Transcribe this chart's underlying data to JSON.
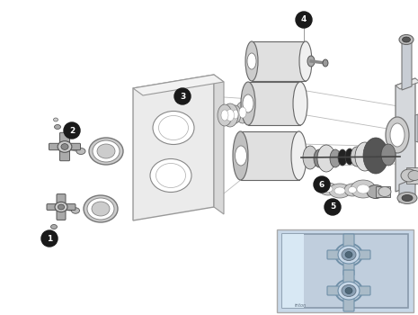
{
  "background_color": "#ffffff",
  "label_bg": "#1a1a1a",
  "label_text_color": "#ffffff",
  "figsize": [
    4.65,
    3.5
  ],
  "dpi": 100,
  "parts": {
    "plate_face": "#ebebeb",
    "plate_side": "#d8d8d8",
    "plate_top": "#f2f2f2",
    "plate_edge": "#999999",
    "cylinder_body": "#e0e0e0",
    "cylinder_dark": "#888888",
    "cylinder_light": "#f0f0f0",
    "ring_face": "#cccccc",
    "ring_inner": "#ffffff",
    "rubber": "#222222",
    "chrome_body": "#d0d8e0",
    "chrome_dark": "#8898a8",
    "chrome_mid": "#b0bcc8",
    "chrome_light": "#e8eef4",
    "handle_arm": "#aaaaaa",
    "handle_center": "#cccccc",
    "line_color": "#999999",
    "small_part": "#bbbbbb",
    "cap_color": "#c8c8c8",
    "valve_body": "#d5d8dc",
    "valve_dark": "#a0a8b0",
    "pipe_color": "#c8cdd4",
    "inset_bg": "#c8d8e8",
    "inset_plate": "#c0cedd",
    "inset_chrome": "#b8c8d8"
  }
}
